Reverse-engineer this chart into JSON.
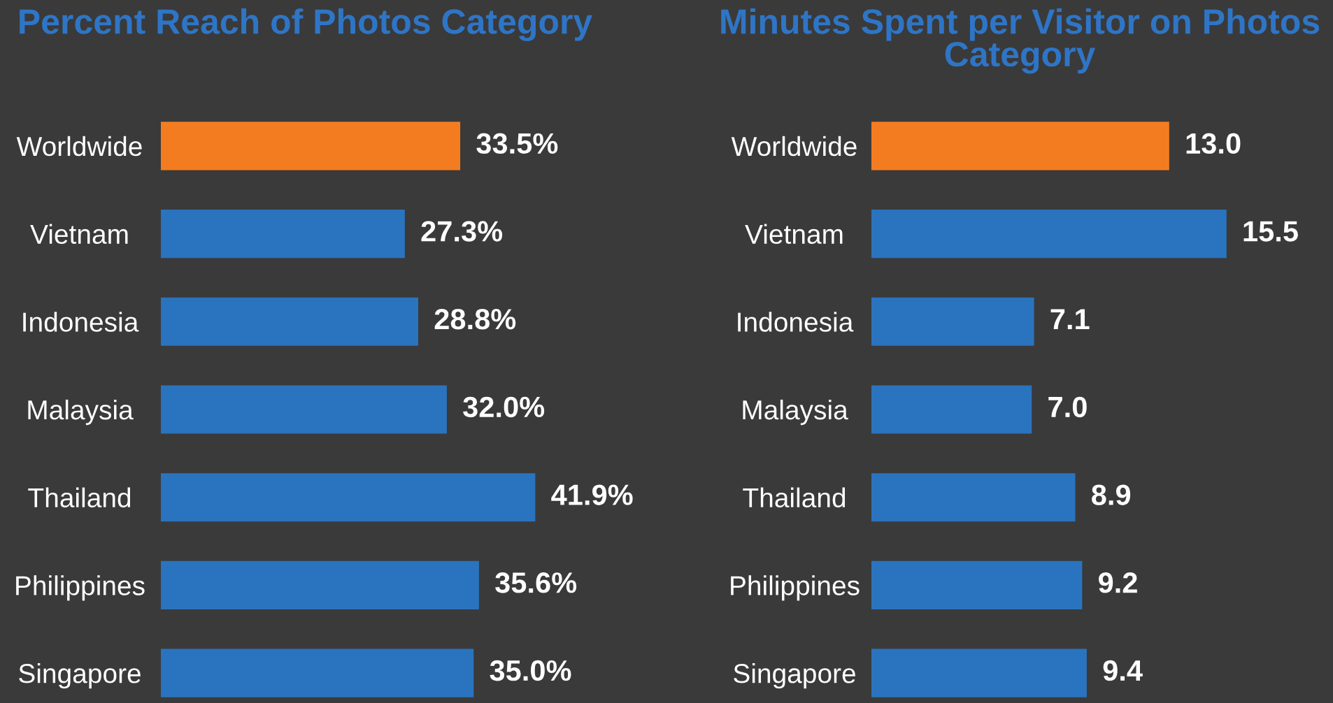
{
  "chart_data": [
    {
      "type": "bar",
      "orientation": "horizontal",
      "title": "Percent Reach of Photos Category",
      "categories": [
        "Worldwide",
        "Vietnam",
        "Indonesia",
        "Malaysia",
        "Thailand",
        "Philippines",
        "Singapore"
      ],
      "values": [
        33.5,
        27.3,
        28.8,
        32.0,
        41.9,
        35.6,
        35.0
      ],
      "colors": [
        "#f47c20",
        "#2a74bf",
        "#2a74bf",
        "#2a74bf",
        "#2a74bf",
        "#2a74bf",
        "#2a74bf"
      ],
      "value_labels": [
        "33.5%",
        "27.3%",
        "28.8%",
        "32.0%",
        "41.9%",
        "35.6%",
        "35.0%"
      ],
      "tick_labels": "y",
      "grid": false,
      "legend": false
    },
    {
      "type": "bar",
      "orientation": "horizontal",
      "title": "Minutes Spent per Visitor on Photos Category",
      "categories": [
        "Worldwide",
        "Vietnam",
        "Indonesia",
        "Malaysia",
        "Thailand",
        "Philippines",
        "Singapore"
      ],
      "values": [
        13.0,
        15.5,
        7.1,
        7.0,
        8.9,
        9.2,
        9.4
      ],
      "colors": [
        "#f47c20",
        "#2a74bf",
        "#2a74bf",
        "#2a74bf",
        "#2a74bf",
        "#2a74bf",
        "#2a74bf"
      ],
      "value_labels": [
        "13.0",
        "15.5",
        "7.1",
        "7.0",
        "8.9",
        "9.2",
        "9.4"
      ],
      "tick_labels": "y",
      "grid": false,
      "legend": false
    }
  ]
}
